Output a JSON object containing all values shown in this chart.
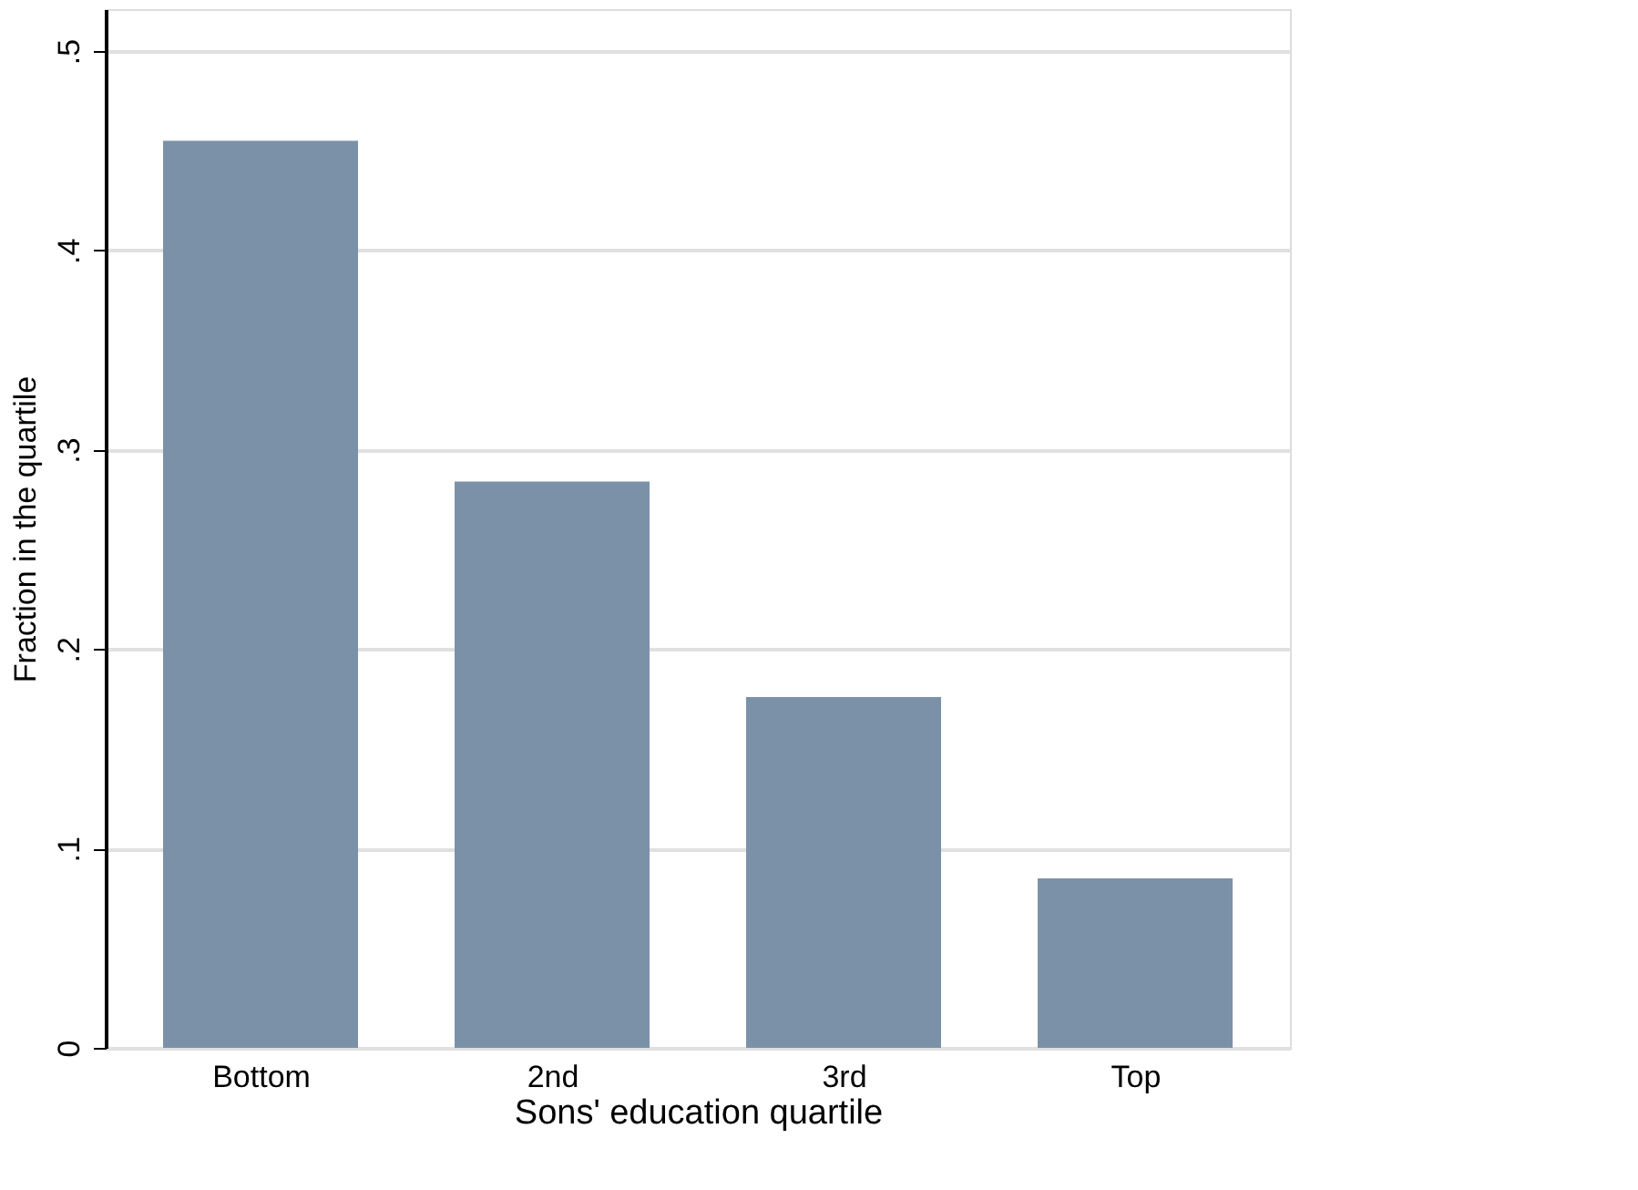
{
  "chart_data": {
    "type": "bar",
    "xlabel": "Sons' education quartile",
    "ylabel": "Fraction in the quartile",
    "categories": [
      "Bottom",
      "2nd",
      "3rd",
      "Top"
    ],
    "values": [
      0.455,
      0.284,
      0.176,
      0.085
    ],
    "color": "#7b91a8",
    "ylim": [
      0,
      0.521
    ],
    "yticks": [
      0,
      {
        "value": 0.1,
        "label": ".1"
      },
      {
        "value": 0.2,
        "label": ".2"
      },
      {
        "value": 0.3,
        "label": ".3"
      },
      {
        "value": 0.4,
        "label": ".4"
      },
      {
        "value": 0.5,
        "label": ".5"
      }
    ],
    "grid": "y"
  }
}
